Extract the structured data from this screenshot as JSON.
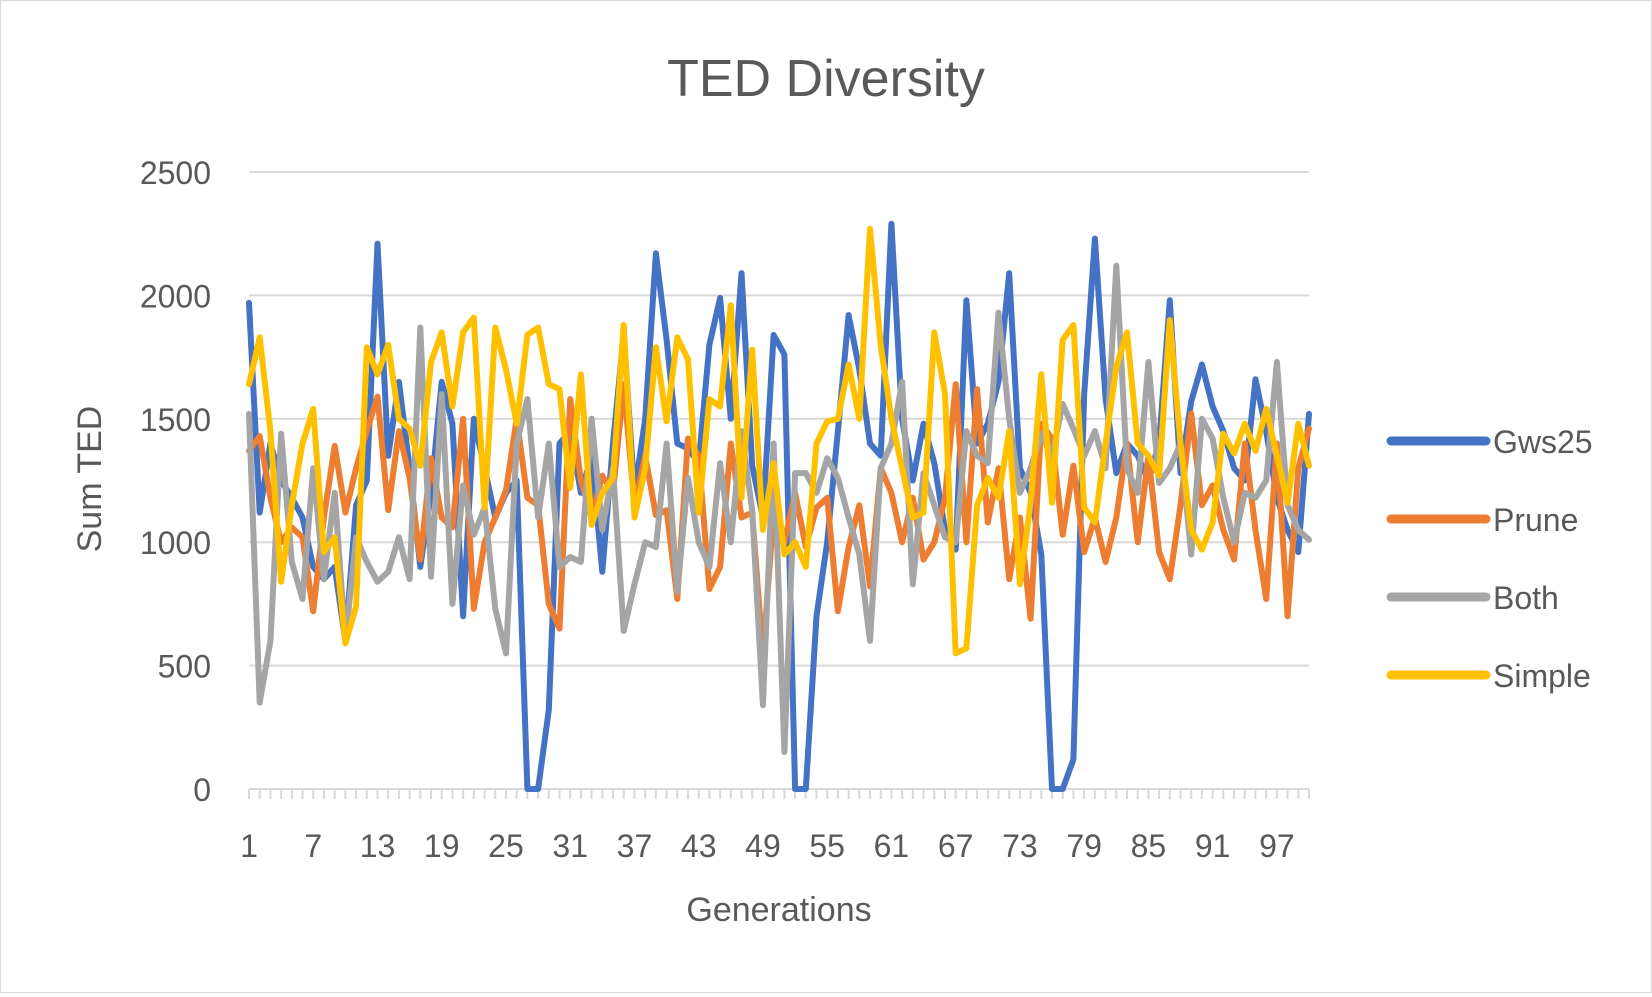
{
  "chart_data": {
    "type": "line",
    "title": "TED Diversity",
    "xlabel": "Generations",
    "ylabel": "Sum TED",
    "ylim": [
      0,
      2500
    ],
    "yticks": [
      "0",
      "500",
      "1000",
      "1500",
      "2000",
      "2500"
    ],
    "x": [
      1,
      2,
      3,
      4,
      5,
      6,
      7,
      8,
      9,
      10,
      11,
      12,
      13,
      14,
      15,
      16,
      17,
      18,
      19,
      20,
      21,
      22,
      23,
      24,
      25,
      26,
      27,
      28,
      29,
      30,
      31,
      32,
      33,
      34,
      35,
      36,
      37,
      38,
      39,
      40,
      41,
      42,
      43,
      44,
      45,
      46,
      47,
      48,
      49,
      50,
      51,
      52,
      53,
      54,
      55,
      56,
      57,
      58,
      59,
      60,
      61,
      62,
      63,
      64,
      65,
      66,
      67,
      68,
      69,
      70,
      71,
      72,
      73,
      74,
      75,
      76,
      77,
      78,
      79,
      80,
      81,
      82,
      83,
      84,
      85,
      86,
      87,
      88,
      89,
      90,
      91,
      92,
      93,
      94,
      95,
      96,
      97,
      98,
      99,
      100
    ],
    "xtick_labels": [
      "1",
      "7",
      "13",
      "19",
      "25",
      "31",
      "37",
      "43",
      "49",
      "55",
      "61",
      "67",
      "73",
      "79",
      "85",
      "91",
      "97"
    ],
    "grid": true,
    "legend": "right",
    "series": [
      {
        "name": "Gws25",
        "color": "#4472c4",
        "values": [
          1970,
          1120,
          1400,
          1250,
          1180,
          1100,
          900,
          850,
          900,
          600,
          1150,
          1250,
          2210,
          1350,
          1650,
          1300,
          900,
          1200,
          1650,
          1480,
          700,
          1500,
          1300,
          1100,
          1200,
          1250,
          0,
          0,
          320,
          1400,
          1450,
          1200,
          1350,
          880,
          1400,
          1840,
          1200,
          1500,
          2170,
          1820,
          1400,
          1380,
          1320,
          1800,
          1990,
          1500,
          2090,
          1310,
          1100,
          1840,
          1760,
          0,
          0,
          700,
          1000,
          1450,
          1920,
          1700,
          1400,
          1350,
          2290,
          1500,
          1250,
          1480,
          1320,
          1050,
          970,
          1980,
          1400,
          1480,
          1650,
          2090,
          1300,
          1200,
          950,
          0,
          0,
          120,
          1600,
          2230,
          1580,
          1280,
          1400,
          1350,
          1250,
          1400,
          1980,
          1280,
          1570,
          1720,
          1550,
          1450,
          1300,
          1250,
          1660,
          1450,
          1180,
          1050,
          960,
          1520
        ]
      },
      {
        "name": "Prune",
        "color": "#ed7d31",
        "values": [
          1370,
          1430,
          1180,
          1000,
          1060,
          1020,
          720,
          1100,
          1390,
          1120,
          1300,
          1450,
          1590,
          1130,
          1450,
          1260,
          930,
          1340,
          1100,
          1060,
          1500,
          730,
          1000,
          1100,
          1210,
          1500,
          1180,
          1150,
          750,
          650,
          1580,
          1250,
          1100,
          1270,
          1200,
          1640,
          1150,
          1350,
          1110,
          1130,
          770,
          1420,
          1350,
          810,
          900,
          1400,
          1100,
          1120,
          540,
          1120,
          1000,
          1200,
          980,
          1140,
          1180,
          720,
          980,
          1150,
          820,
          1300,
          1200,
          1000,
          1180,
          930,
          1000,
          1180,
          1640,
          1000,
          1620,
          1080,
          1300,
          850,
          1100,
          690,
          1480,
          1420,
          1030,
          1310,
          960,
          1100,
          920,
          1100,
          1400,
          1000,
          1350,
          960,
          850,
          1150,
          1520,
          1150,
          1230,
          1050,
          930,
          1400,
          1050,
          770,
          1400,
          700,
          1300,
          1460
        ]
      },
      {
        "name": "Both",
        "color": "#a5a5a5",
        "values": [
          1520,
          350,
          600,
          1440,
          920,
          770,
          1300,
          850,
          1200,
          600,
          1020,
          920,
          840,
          880,
          1020,
          850,
          1870,
          860,
          1600,
          750,
          1230,
          1030,
          1140,
          730,
          550,
          1400,
          1580,
          1100,
          1400,
          900,
          940,
          920,
          1500,
          1050,
          1300,
          640,
          830,
          1000,
          980,
          1400,
          800,
          1260,
          1000,
          900,
          1320,
          1000,
          1450,
          1130,
          340,
          1400,
          150,
          1280,
          1280,
          1200,
          1340,
          1260,
          1100,
          950,
          600,
          1300,
          1400,
          1650,
          830,
          1280,
          1150,
          1020,
          1000,
          1450,
          1350,
          1320,
          1930,
          1500,
          1200,
          1300,
          1440,
          1350,
          1560,
          1460,
          1350,
          1450,
          1300,
          2120,
          1300,
          1200,
          1730,
          1240,
          1300,
          1400,
          950,
          1500,
          1420,
          1180,
          1000,
          1200,
          1180,
          1250,
          1730,
          1150,
          1050,
          1010
        ]
      },
      {
        "name": "Simple",
        "color": "#ffc000",
        "values": [
          1640,
          1830,
          1450,
          840,
          1150,
          1400,
          1540,
          960,
          1020,
          590,
          740,
          1790,
          1680,
          1800,
          1500,
          1460,
          1310,
          1730,
          1850,
          1550,
          1850,
          1910,
          1140,
          1870,
          1700,
          1480,
          1840,
          1870,
          1640,
          1620,
          1220,
          1680,
          1070,
          1200,
          1260,
          1880,
          1100,
          1300,
          1790,
          1490,
          1830,
          1740,
          1120,
          1580,
          1550,
          1960,
          1180,
          1780,
          1050,
          1320,
          950,
          1000,
          900,
          1400,
          1490,
          1500,
          1720,
          1500,
          2270,
          1800,
          1500,
          1300,
          1100,
          1120,
          1850,
          1600,
          550,
          570,
          1150,
          1260,
          1180,
          1450,
          830,
          1160,
          1680,
          1160,
          1820,
          1880,
          1140,
          1080,
          1400,
          1710,
          1850,
          1400,
          1350,
          1270,
          1900,
          1400,
          1050,
          970,
          1080,
          1440,
          1360,
          1480,
          1370,
          1540,
          1350,
          1160,
          1480,
          1310
        ]
      }
    ]
  }
}
